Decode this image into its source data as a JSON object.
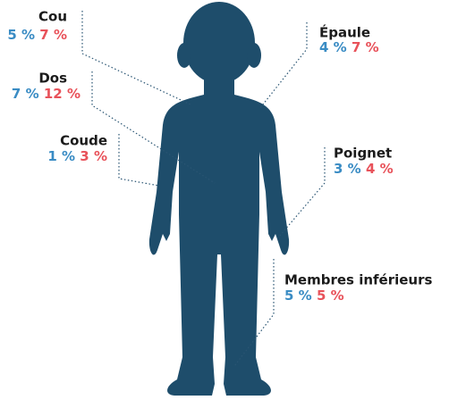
{
  "items": [
    {
      "name": "Cou",
      "blue": "5 %",
      "red": "7 %"
    },
    {
      "name": "Dos",
      "blue": "7 %",
      "red": "12 %"
    },
    {
      "name": "Coude",
      "blue": "1 %",
      "red": "3 %"
    },
    {
      "name": "Épaule",
      "blue": "4 %",
      "red": "7 %"
    },
    {
      "name": "Poignet",
      "blue": "3 %",
      "red": "4 %"
    },
    {
      "name": "Membres inférieurs",
      "blue": "5 %",
      "red": "5 %"
    }
  ]
}
